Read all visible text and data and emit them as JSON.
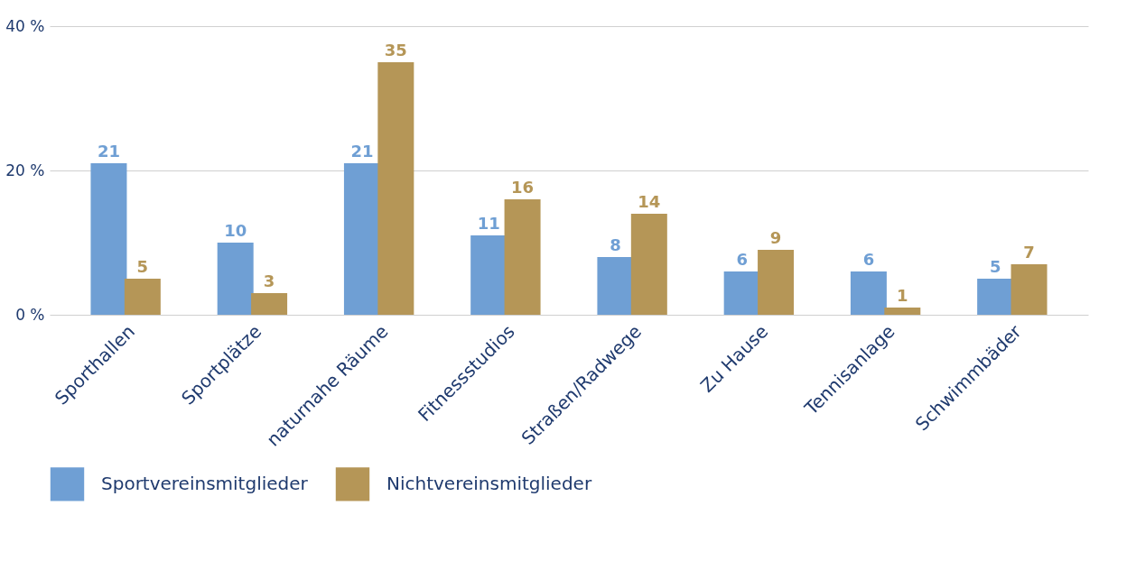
{
  "chart_data": {
    "type": "bar",
    "categories": [
      "Sporthallen",
      "Sportplätze",
      "naturnahe Räume",
      "Fitnessstudios",
      "Straßen/Radwege",
      "Zu Hause",
      "Tennisanlage",
      "Schwimmbäder"
    ],
    "series": [
      {
        "name": "Sportvereinsmitglieder",
        "color": "#6f9fd4",
        "values": [
          21,
          10,
          21,
          11,
          8,
          6,
          6,
          5
        ]
      },
      {
        "name": "Nichtvereinsmitglieder",
        "color": "#b59657",
        "values": [
          5,
          3,
          35,
          16,
          14,
          9,
          1,
          7
        ]
      }
    ],
    "ylim": [
      0,
      40
    ],
    "yticks": [
      {
        "value": 0,
        "label": "0 %"
      },
      {
        "value": 20,
        "label": "20 %"
      },
      {
        "value": 40,
        "label": "40 %"
      }
    ],
    "grid": "y",
    "legend": "bottom left",
    "data_labels": true
  }
}
